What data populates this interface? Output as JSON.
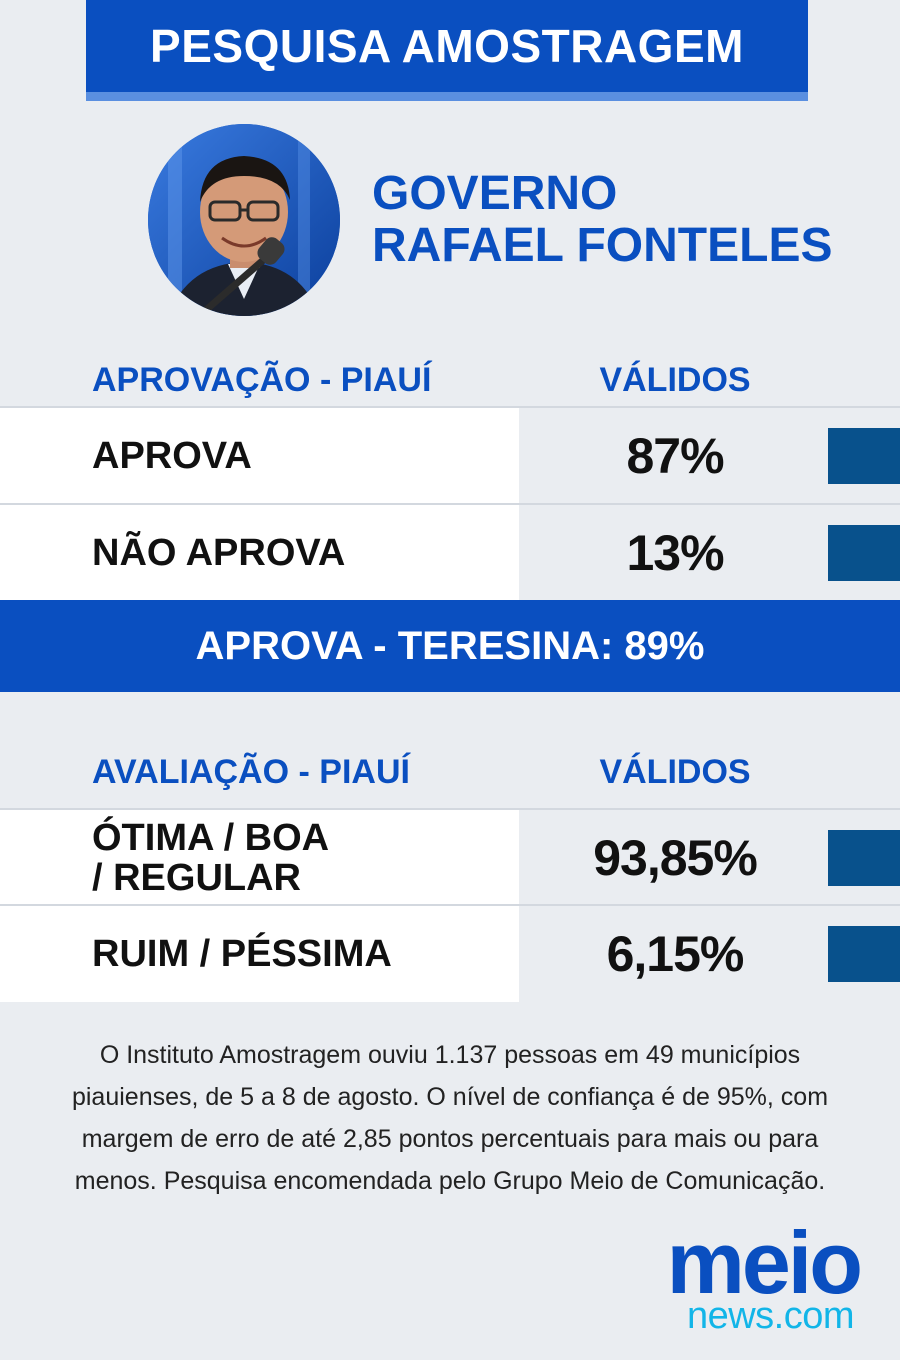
{
  "header": {
    "title": "PESQUISA AMOSTRAGEM"
  },
  "governo": {
    "line1": "GOVERNO",
    "line2": "RAFAEL FONTELES"
  },
  "aprovacao": {
    "heading": "APROVAÇÃO - PIAUÍ",
    "column": "VÁLIDOS",
    "rows": [
      {
        "label": "APROVA",
        "value": "87%"
      },
      {
        "label": "NÃO APROVA",
        "value": "13%"
      }
    ]
  },
  "teresina": {
    "text": "APROVA - TERESINA: 89%"
  },
  "avaliacao": {
    "heading": "AVALIAÇÃO - PIAUÍ",
    "column": "VÁLIDOS",
    "rows": [
      {
        "label_line1": "ÓTIMA / BOA",
        "label_line2": "/ REGULAR",
        "value": "93,85%"
      },
      {
        "label": "RUIM / PÉSSIMA",
        "value": "6,15%"
      }
    ]
  },
  "footnote": "O Instituto Amostragem ouviu 1.137 pessoas em 49 municípios piauienses, de 5 a 8 de agosto. O nível de confiança é de 95%, com margem de erro de até 2,85 pontos percentuais para mais ou para menos. Pesquisa encomendada pelo Grupo  Meio de Comunicação.",
  "logo": {
    "meio": "meio",
    "news": "news.com"
  },
  "colors": {
    "brand_blue": "#0a4fc0",
    "bar_blue": "#08518c",
    "logo_cyan": "#12b5e8",
    "background": "#eaedf1"
  }
}
